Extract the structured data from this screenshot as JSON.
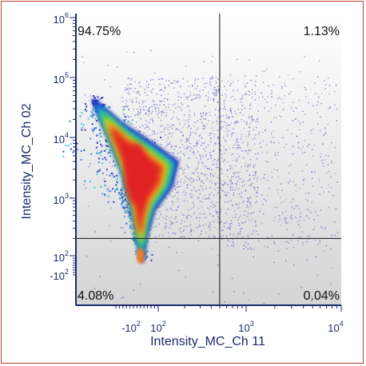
{
  "chart_data": {
    "type": "scatter",
    "title": "",
    "xlabel": "Intensity_MC_Ch 11",
    "ylabel": "Intensity_MC_Ch 02",
    "x_scale": "biexponential",
    "y_scale": "biexponential",
    "xlim": [
      -300,
      10000
    ],
    "ylim": [
      -250,
      1000000
    ],
    "x_ticks": [
      {
        "base": "-10",
        "exp": "2",
        "value": -100
      },
      {
        "base": "10",
        "exp": "2",
        "value": 100
      },
      {
        "base": "10",
        "exp": "3",
        "value": 1000
      },
      {
        "base": "10",
        "exp": "4",
        "value": 10000
      }
    ],
    "y_ticks": [
      {
        "base": "-10",
        "exp": "2",
        "value": -100
      },
      {
        "base": "10",
        "exp": "2",
        "value": 100
      },
      {
        "base": "10",
        "exp": "3",
        "value": 1000
      },
      {
        "base": "10",
        "exp": "4",
        "value": 10000
      },
      {
        "base": "10",
        "exp": "5",
        "value": 100000
      },
      {
        "base": "10",
        "exp": "6",
        "value": 1000000
      }
    ],
    "quadrant_gates": {
      "x": 500,
      "y": 200
    },
    "quadrants": {
      "upper_left": "94.75%",
      "upper_right": "1.13%",
      "lower_left": "4.08%",
      "lower_right": "0.04%"
    },
    "density_colors": [
      "#1a1ab0",
      "#1f6fe0",
      "#22c0d0",
      "#3ccf3c",
      "#e8e020",
      "#f08020",
      "#e02020"
    ],
    "grid": false,
    "legend": "none"
  }
}
